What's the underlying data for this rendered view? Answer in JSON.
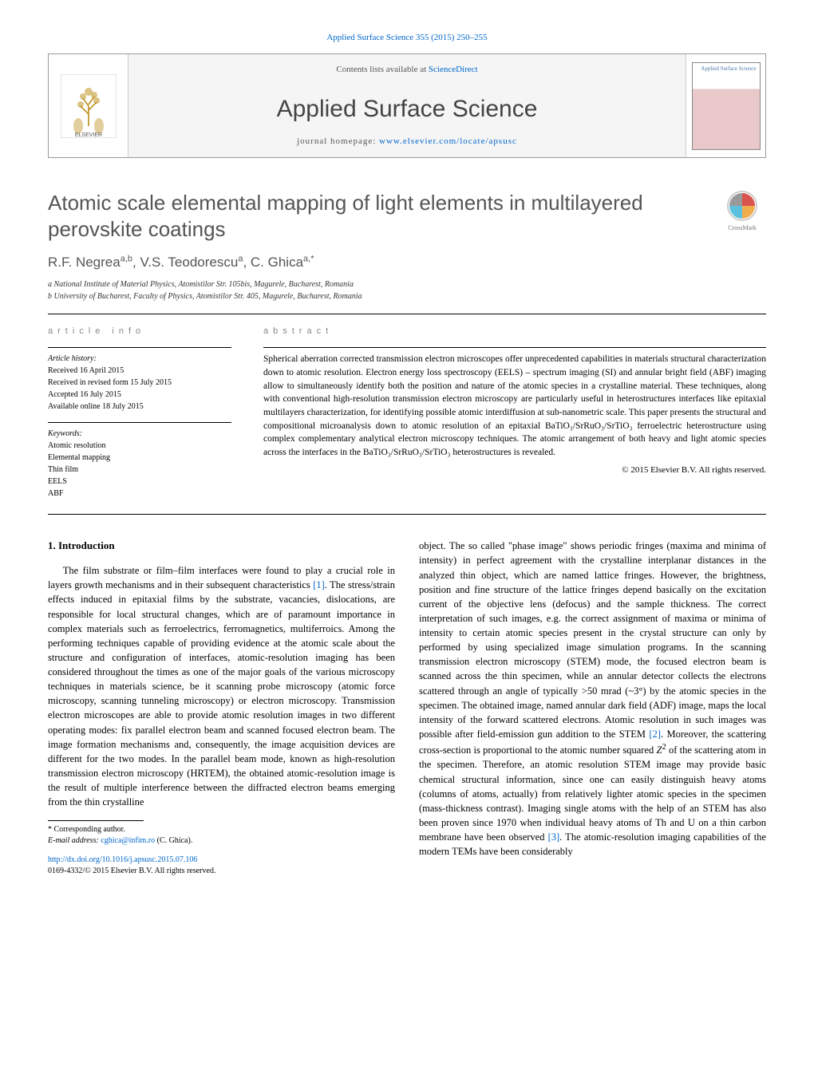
{
  "citation": "Applied Surface Science 355 (2015) 250–255",
  "header": {
    "contents_prefix": "Contents lists available at ",
    "contents_link": "ScienceDirect",
    "journal_name": "Applied Surface Science",
    "homepage_prefix": "journal homepage: ",
    "homepage_url": "www.elsevier.com/locate/apsusc",
    "publisher": "ELSEVIER",
    "cover_title": "Applied Surface Science"
  },
  "crossmark_label": "CrossMark",
  "title": "Atomic scale elemental mapping of light elements in multilayered perovskite coatings",
  "authors_html": "R.F. Negrea<sup>a,b</sup>, V.S. Teodorescu<sup>a</sup>, C. Ghica<sup>a,*</sup>",
  "affiliations": [
    "a National Institute of Material Physics, Atomistilor Str. 105bis, Magurele, Bucharest, Romania",
    "b University of Bucharest, Faculty of Physics, Atomistilor Str. 405, Magurele, Bucharest, Romania"
  ],
  "info": {
    "section_label": "article info",
    "history_label": "Article history:",
    "history": [
      "Received 16 April 2015",
      "Received in revised form 15 July 2015",
      "Accepted 16 July 2015",
      "Available online 18 July 2015"
    ],
    "keywords_label": "Keywords:",
    "keywords": [
      "Atomic resolution",
      "Elemental mapping",
      "Thin film",
      "EELS",
      "ABF"
    ]
  },
  "abstract": {
    "section_label": "abstract",
    "text": "Spherical aberration corrected transmission electron microscopes offer unprecedented capabilities in materials structural characterization down to atomic resolution. Electron energy loss spectroscopy (EELS) – spectrum imaging (SI) and annular bright field (ABF) imaging allow to simultaneously identify both the position and nature of the atomic species in a crystalline material. These techniques, along with conventional high-resolution transmission electron microscopy are particularly useful in heterostructures interfaces like epitaxial multilayers characterization, for identifying possible atomic interdiffusion at sub-nanometric scale. This paper presents the structural and compositional microanalysis down to atomic resolution of an epitaxial BaTiO₃/SrRuO₃/SrTiO₃ ferroelectric heterostructure using complex complementary analytical electron microscopy techniques. The atomic arrangement of both heavy and light atomic species across the interfaces in the BaTiO₃/SrRuO₃/SrTiO₃ heterostructures is revealed.",
    "copyright": "© 2015 Elsevier B.V. All rights reserved."
  },
  "intro": {
    "heading": "1. Introduction",
    "p1": "The film substrate or film–film interfaces were found to play a crucial role in layers growth mechanisms and in their subsequent characteristics [1]. The stress/strain effects induced in epitaxial films by the substrate, vacancies, dislocations, are responsible for local structural changes, which are of paramount importance in complex materials such as ferroelectrics, ferromagnetics, multiferroics. Among the performing techniques capable of providing evidence at the atomic scale about the structure and configuration of interfaces, atomic-resolution imaging has been considered throughout the times as one of the major goals of the various microscopy techniques in materials science, be it scanning probe microscopy (atomic force microscopy, scanning tunneling microscopy) or electron microscopy. Transmission electron microscopes are able to provide atomic resolution images in two different operating modes: fix parallel electron beam and scanned focused electron beam. The image formation mechanisms and, consequently, the image acquisition devices are different for the two modes. In the parallel beam mode, known as high-resolution transmission electron microscopy (HRTEM), the obtained atomic-resolution image is the result of multiple interference between the diffracted electron beams emerging from the thin crystalline",
    "p2": "object. The so called \"phase image\" shows periodic fringes (maxima and minima of intensity) in perfect agreement with the crystalline interplanar distances in the analyzed thin object, which are named lattice fringes. However, the brightness, position and fine structure of the lattice fringes depend basically on the excitation current of the objective lens (defocus) and the sample thickness. The correct interpretation of such images, e.g. the correct assignment of maxima or minima of intensity to certain atomic species present in the crystal structure can only by performed by using specialized image simulation programs. In the scanning transmission electron microscopy (STEM) mode, the focused electron beam is scanned across the thin specimen, while an annular detector collects the electrons scattered through an angle of typically >50 mrad (~3°) by the atomic species in the specimen. The obtained image, named annular dark field (ADF) image, maps the local intensity of the forward scattered electrons. Atomic resolution in such images was possible after field-emission gun addition to the STEM [2]. Moreover, the scattering cross-section is proportional to the atomic number squared Z² of the scattering atom in the specimen. Therefore, an atomic resolution STEM image may provide basic chemical structural information, since one can easily distinguish heavy atoms (columns of atoms, actually) from relatively lighter atomic species in the specimen (mass-thickness contrast). Imaging single atoms with the help of an STEM has also been proven since 1970 when individual heavy atoms of Th and U on a thin carbon membrane have been observed [3]. The atomic-resolution imaging capabilities of the modern TEMs have been considerably"
  },
  "footnotes": {
    "corresponding": "* Corresponding author.",
    "email_label": "E-mail address: ",
    "email": "cghica@infim.ro",
    "email_name": " (C. Ghica)."
  },
  "doi": {
    "url": "http://dx.doi.org/10.1016/j.apsusc.2015.07.106",
    "issn_line": "0169-4332/© 2015 Elsevier B.V. All rights reserved."
  },
  "refs": {
    "r1": "[1]",
    "r2": "[2]",
    "r3": "[3]"
  },
  "colors": {
    "link": "#0066cc",
    "heading_gray": "#555555",
    "label_gray": "#888888",
    "rule": "#000000"
  }
}
